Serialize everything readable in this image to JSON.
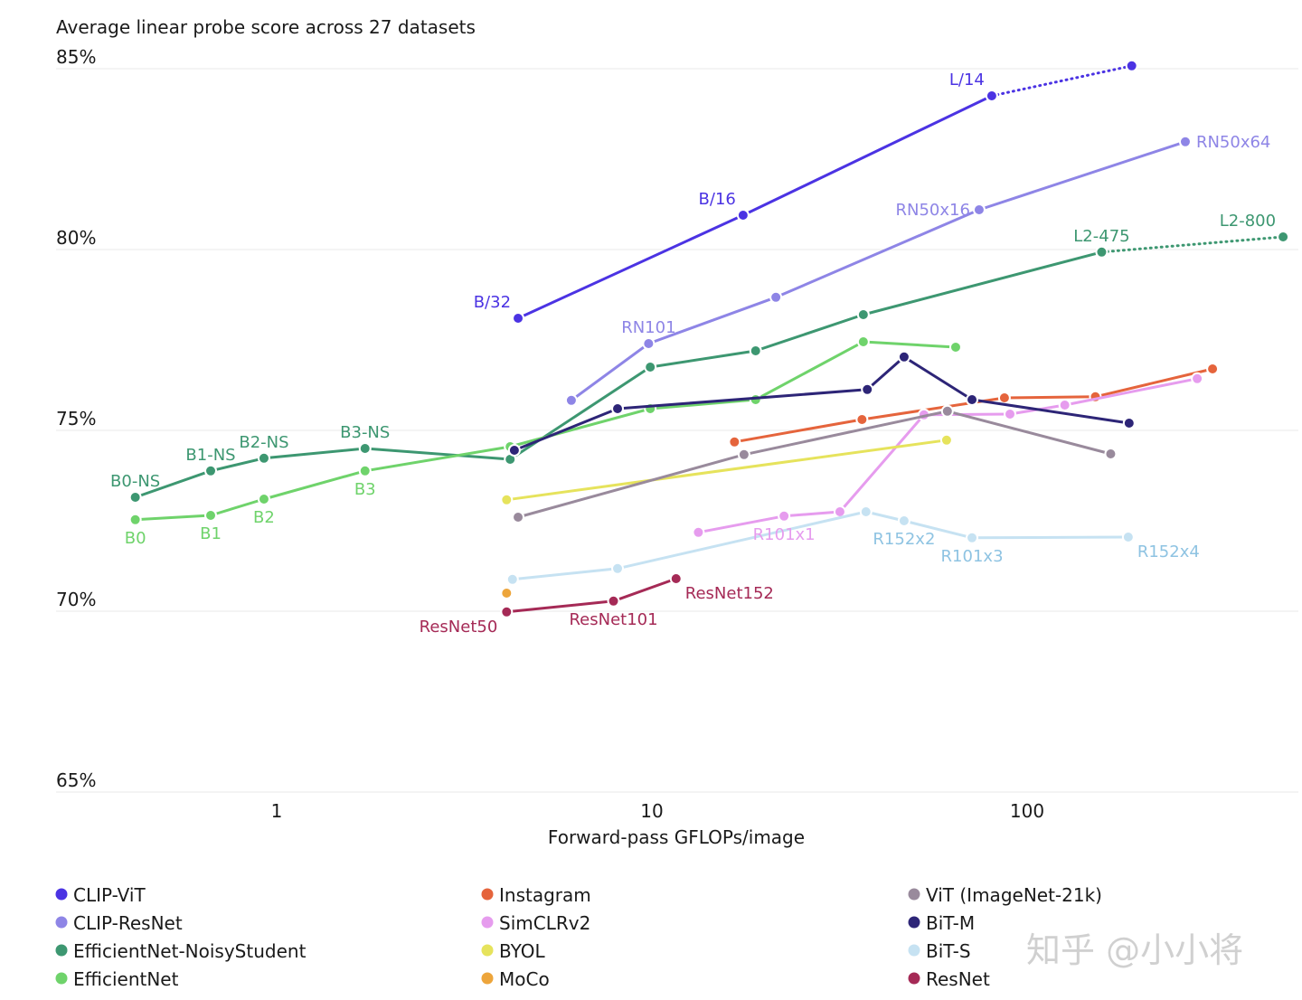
{
  "chart_data": {
    "type": "line",
    "title": "Average linear probe score across 27 datasets",
    "xlabel": "Forward-pass GFLOPs/image",
    "ylabel": "",
    "xscale": "log",
    "xlim": [
      0.35,
      550
    ],
    "ylim": [
      65,
      85
    ],
    "xticks": [
      {
        "v": 1,
        "label": "1"
      },
      {
        "v": 10,
        "label": "10"
      },
      {
        "v": 100,
        "label": "100"
      }
    ],
    "yticks": [
      {
        "v": 85,
        "label": "85%"
      },
      {
        "v": 80,
        "label": "80%"
      },
      {
        "v": 75,
        "label": "75%"
      },
      {
        "v": 70,
        "label": "70%"
      },
      {
        "v": 65,
        "label": "65%"
      }
    ],
    "grid": "horizontal",
    "legend_placement": "bottom",
    "series": [
      {
        "name": "CLIP-ViT",
        "color": "#4b33e3",
        "dotted_last": true,
        "points": [
          {
            "x": 4.4,
            "y": 78.1,
            "label": "B/32",
            "pos": "left-above"
          },
          {
            "x": 17.5,
            "y": 80.95,
            "label": "B/16",
            "pos": "left-above"
          },
          {
            "x": 80.5,
            "y": 84.25,
            "label": "L/14",
            "pos": "left-above"
          },
          {
            "x": 190,
            "y": 85.08
          }
        ]
      },
      {
        "name": "CLIP-ResNet",
        "color": "#8e85e6",
        "points": [
          {
            "x": 6.1,
            "y": 75.83
          },
          {
            "x": 9.8,
            "y": 77.4,
            "label": "RN101",
            "pos": "above"
          },
          {
            "x": 21.4,
            "y": 78.68
          },
          {
            "x": 74.5,
            "y": 81.1,
            "label": "RN50x16",
            "pos": "left"
          },
          {
            "x": 264,
            "y": 82.98,
            "label": "RN50x64",
            "pos": "right"
          }
        ]
      },
      {
        "name": "EfficientNet-NoisyStudent",
        "color": "#3d9771",
        "dotted_last": true,
        "points": [
          {
            "x": 0.42,
            "y": 73.15,
            "label": "B0-NS",
            "pos": "above"
          },
          {
            "x": 0.667,
            "y": 73.88,
            "label": "B1-NS",
            "pos": "above"
          },
          {
            "x": 0.925,
            "y": 74.23,
            "label": "B2-NS",
            "pos": "above"
          },
          {
            "x": 1.72,
            "y": 74.5,
            "label": "B3-NS",
            "pos": "above"
          },
          {
            "x": 4.19,
            "y": 74.2
          },
          {
            "x": 9.9,
            "y": 76.75
          },
          {
            "x": 18.9,
            "y": 77.2
          },
          {
            "x": 36.6,
            "y": 78.2
          },
          {
            "x": 158,
            "y": 79.93,
            "label": "L2-475",
            "pos": "above"
          },
          {
            "x": 481,
            "y": 80.35,
            "label": "L2-800",
            "pos": "left-above"
          }
        ]
      },
      {
        "name": "EfficientNet",
        "color": "#6fd36b",
        "points": [
          {
            "x": 0.42,
            "y": 72.53,
            "label": "B0",
            "pos": "below"
          },
          {
            "x": 0.667,
            "y": 72.65,
            "label": "B1",
            "pos": "below"
          },
          {
            "x": 0.925,
            "y": 73.1,
            "label": "B2",
            "pos": "below"
          },
          {
            "x": 1.72,
            "y": 73.88,
            "label": "B3",
            "pos": "below"
          },
          {
            "x": 4.19,
            "y": 74.55
          },
          {
            "x": 9.9,
            "y": 75.6
          },
          {
            "x": 18.9,
            "y": 75.85
          },
          {
            "x": 36.6,
            "y": 77.45
          },
          {
            "x": 64.5,
            "y": 77.3
          }
        ]
      },
      {
        "name": "Instagram",
        "color": "#e5643c",
        "points": [
          {
            "x": 16.6,
            "y": 74.68
          },
          {
            "x": 36.3,
            "y": 75.3
          },
          {
            "x": 87,
            "y": 75.9
          },
          {
            "x": 152,
            "y": 75.93
          },
          {
            "x": 312,
            "y": 76.7
          }
        ]
      },
      {
        "name": "SimCLRv2",
        "color": "#e69cee",
        "points": [
          {
            "x": 13.3,
            "y": 72.18
          },
          {
            "x": 22.5,
            "y": 72.63,
            "label": "R101x1",
            "pos": "below"
          },
          {
            "x": 31.7,
            "y": 72.75
          },
          {
            "x": 53.1,
            "y": 75.43
          },
          {
            "x": 90,
            "y": 75.45
          },
          {
            "x": 126,
            "y": 75.7
          },
          {
            "x": 284,
            "y": 76.43
          }
        ]
      },
      {
        "name": "BYOL",
        "color": "#e6e35c",
        "points": [
          {
            "x": 4.1,
            "y": 73.08
          },
          {
            "x": 61,
            "y": 74.73
          }
        ]
      },
      {
        "name": "MoCo",
        "color": "#eda53b",
        "points": [
          {
            "x": 4.1,
            "y": 70.5
          }
        ]
      },
      {
        "name": "ViT (ImageNet-21k)",
        "color": "#998a9c",
        "points": [
          {
            "x": 4.4,
            "y": 72.6
          },
          {
            "x": 17.6,
            "y": 74.33
          },
          {
            "x": 61.3,
            "y": 75.53
          },
          {
            "x": 167,
            "y": 74.35
          }
        ]
      },
      {
        "name": "BiT-M",
        "color": "#2d2577",
        "points": [
          {
            "x": 4.3,
            "y": 74.45
          },
          {
            "x": 8.1,
            "y": 75.6
          },
          {
            "x": 37.5,
            "y": 76.13
          },
          {
            "x": 47,
            "y": 77.03
          },
          {
            "x": 71.3,
            "y": 75.85
          },
          {
            "x": 187,
            "y": 75.2
          }
        ]
      },
      {
        "name": "BiT-S",
        "color": "#c6e2f2",
        "labelColor": "#8ec3e2",
        "points": [
          {
            "x": 4.25,
            "y": 70.88
          },
          {
            "x": 8.1,
            "y": 71.18
          },
          {
            "x": 37.2,
            "y": 72.75
          },
          {
            "x": 47,
            "y": 72.5,
            "label": "R152x2",
            "pos": "below"
          },
          {
            "x": 71.3,
            "y": 72.03,
            "label": "R101x3",
            "pos": "below"
          },
          {
            "x": 186,
            "y": 72.05,
            "label": "R152x4",
            "pos": "below-right"
          }
        ]
      },
      {
        "name": "ResNet",
        "color": "#a52a56",
        "points": [
          {
            "x": 4.1,
            "y": 69.98,
            "label": "ResNet50",
            "pos": "below-left"
          },
          {
            "x": 7.9,
            "y": 70.28,
            "label": "ResNet101",
            "pos": "below"
          },
          {
            "x": 11.6,
            "y": 70.9,
            "label": "ResNet152",
            "pos": "right-below"
          }
        ]
      }
    ]
  },
  "watermark": "知乎 @小小将"
}
